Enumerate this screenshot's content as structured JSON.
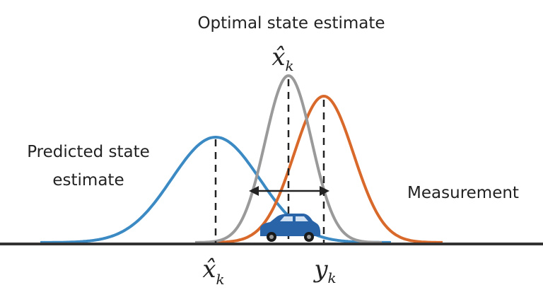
{
  "title": "Optimal state estimate",
  "optimal_label": {
    "symbol": "x̂",
    "subscript": "k"
  },
  "predicted_label": [
    "Predicted state",
    "estimate"
  ],
  "measurement_label": "Measurement",
  "axis_labels": [
    {
      "symbol": "x̂",
      "subscript": "k"
    },
    {
      "symbol": "y",
      "subscript": "k"
    }
  ]
}
